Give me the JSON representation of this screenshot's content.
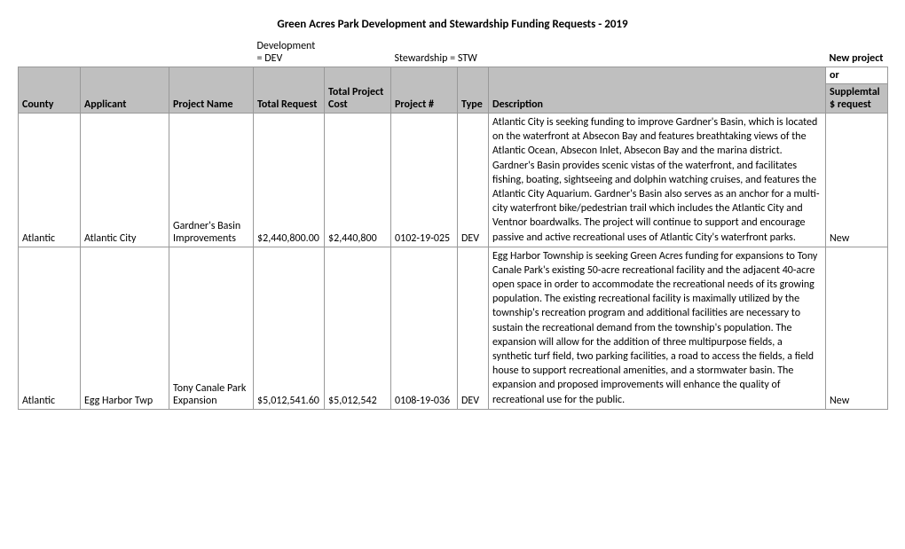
{
  "title": "Green Acres Park Development and Stewardship Funding Requests - 2019",
  "legend_dev": "Development = DEV",
  "legend_stw": "Stewardship = STW",
  "top_note_line1": "New project",
  "top_note_line2": "or",
  "headers": {
    "county": "County",
    "applicant": "Applicant",
    "project_name": "Project Name",
    "total_request": "Total Request",
    "total_project_cost": "Total Project Cost",
    "project_num": "Project #",
    "type": "Type",
    "description": "Description",
    "status": "Supplemtal $ request"
  },
  "rows": [
    {
      "county": "Atlantic",
      "applicant": "Atlantic City",
      "project_name": "Gardner's Basin Improvements",
      "total_request": "$2,440,800.00",
      "total_project_cost": "$2,440,800",
      "project_num": "0102-19-025",
      "type": "DEV",
      "description": "Atlantic City is seeking funding to improve Gardner's Basin, which is located on the waterfront at Absecon Bay and features breathtaking views of the Atlantic Ocean, Absecon Inlet, Absecon Bay and the marina district. Gardner's Basin provides scenic vistas of the waterfront, and facilitates fishing, boating, sightseeing and dolphin watching cruises, and features the Atlantic City Aquarium. Gardner's Basin also serves as an anchor for a multi-city waterfront bike/pedestrian trail which includes the Atlantic City and Ventnor boardwalks. The project will continue to support and encourage passive and active recreational uses of Atlantic City's waterfront parks.",
      "status": "New"
    },
    {
      "county": "Atlantic",
      "applicant": "Egg Harbor Twp",
      "project_name": "Tony Canale Park Expansion",
      "total_request": "$5,012,541.60",
      "total_project_cost": "$5,012,542",
      "project_num": "0108-19-036",
      "type": "DEV",
      "description": "Egg Harbor Township is seeking Green Acres funding for expansions to Tony Canale Park's existing 50-acre recreational facility and the adjacent 40-acre open space in order to accommodate the recreational needs of its growing population. The existing recreational facility is maximally utilized by the township's recreation program and additional facilities are necessary to sustain the recreational demand from the township's population. The expansion will allow for the addition of three multipurpose fields, a synthetic turf field, two parking facilities, a road to access the fields, a field house to support recreational amenities, and a stormwater basin. The expansion and proposed improvements will enhance the quality of recreational use for the public.",
      "status": "New"
    }
  ]
}
